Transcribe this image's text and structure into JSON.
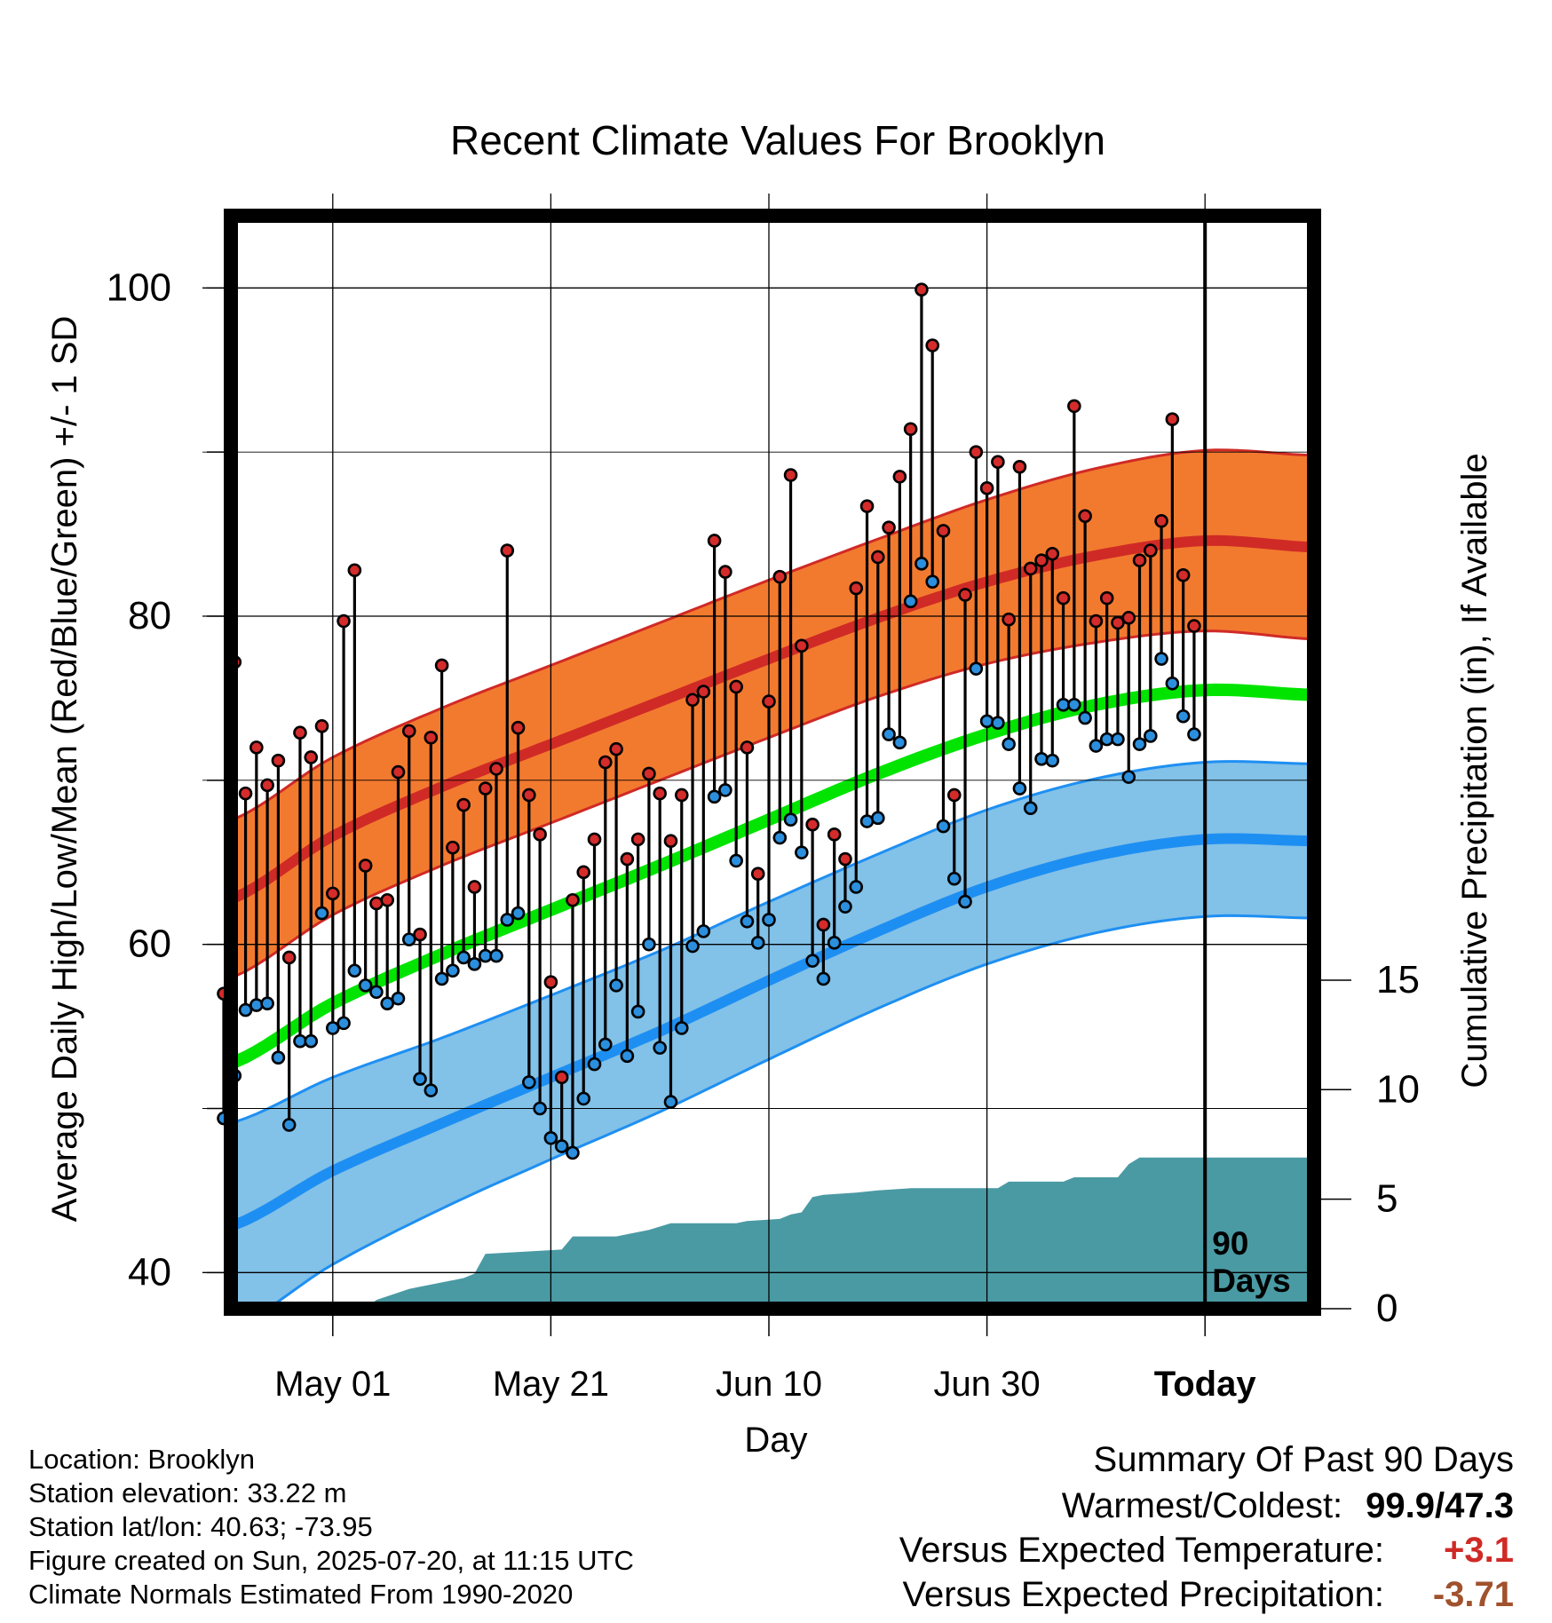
{
  "chart_data": {
    "type": "line",
    "title": "Recent Climate Values For Brooklyn",
    "xlabel": "Day",
    "ylabel": "Average Daily High/Low/Mean (Red/Blue/Green) +/- 1 SD",
    "y2label": "Cumulative Precipitation (in), If Available",
    "x_ticks": [
      {
        "day": 10,
        "label": "May 01"
      },
      {
        "day": 30,
        "label": "May 21"
      },
      {
        "day": 50,
        "label": "Jun 10"
      },
      {
        "day": 70,
        "label": "Jun 30"
      },
      {
        "day": 90,
        "label": "Today"
      }
    ],
    "y_ticks": [
      {
        "value": 40,
        "label": "40"
      },
      {
        "value": 60,
        "label": "60"
      },
      {
        "value": 80,
        "label": "80"
      },
      {
        "value": 100,
        "label": "100"
      }
    ],
    "y2_ticks": [
      {
        "value": 0,
        "label": "0"
      },
      {
        "value": 5,
        "label": "5"
      },
      {
        "value": 10,
        "label": "10"
      },
      {
        "value": 15,
        "label": "15"
      }
    ],
    "xlim": [
      0,
      100
    ],
    "ylim": [
      37.8,
      104.4
    ],
    "y2lim": [
      0,
      15
    ],
    "today_day": 90,
    "today_label": "90 Days",
    "grid": true,
    "colors": {
      "high": "#d02a26",
      "high_band": "#f27a2f",
      "low": "#1e8ff2",
      "low_band": "#82c1e8",
      "mean": "#00e400",
      "precip": "#4a9aa4",
      "high_dot": "#d42b2b",
      "low_dot": "#2b8fde"
    },
    "normal_high": {
      "x": [
        0,
        10,
        20,
        30,
        40,
        50,
        60,
        70,
        80,
        90,
        100
      ],
      "y": [
        62.6,
        66.6,
        69.6,
        72.2,
        74.8,
        77.4,
        79.9,
        82.1,
        83.7,
        84.6,
        84.2
      ]
    },
    "normal_high_sd": [
      4.8,
      4.8,
      4.8,
      4.8,
      4.8,
      4.8,
      4.8,
      5.0,
      5.3,
      5.5,
      5.6
    ],
    "normal_low": {
      "x": [
        0,
        10,
        20,
        30,
        40,
        50,
        60,
        70,
        80,
        90,
        100
      ],
      "y": [
        42.7,
        46.2,
        49.1,
        51.9,
        54.7,
        57.8,
        60.8,
        63.5,
        65.4,
        66.4,
        66.3
      ]
    },
    "normal_low_sd": [
      6.3,
      5.7,
      5.2,
      5.0,
      4.9,
      4.8,
      4.7,
      4.7,
      4.7,
      4.7,
      4.7
    ],
    "normal_mean": {
      "x": [
        0,
        10,
        20,
        30,
        40,
        50,
        60,
        70,
        80,
        90,
        100
      ],
      "y": [
        52.6,
        56.4,
        59.4,
        62.1,
        64.8,
        67.6,
        70.4,
        72.8,
        74.6,
        75.5,
        75.2
      ]
    },
    "daily": [
      {
        "day": 0,
        "high": 57.0,
        "low": 49.4
      },
      {
        "day": 1,
        "high": 77.2,
        "low": 52.0
      },
      {
        "day": 2,
        "high": 69.2,
        "low": 56.0
      },
      {
        "day": 3,
        "high": 72.0,
        "low": 56.3
      },
      {
        "day": 4,
        "high": 69.7,
        "low": 56.4
      },
      {
        "day": 5,
        "high": 71.2,
        "low": 53.1
      },
      {
        "day": 6,
        "high": 59.2,
        "low": 49.0
      },
      {
        "day": 7,
        "high": 72.9,
        "low": 54.1
      },
      {
        "day": 8,
        "high": 71.4,
        "low": 54.1
      },
      {
        "day": 9,
        "high": 73.3,
        "low": 61.9
      },
      {
        "day": 10,
        "high": 63.1,
        "low": 54.9
      },
      {
        "day": 11,
        "high": 79.7,
        "low": 55.2
      },
      {
        "day": 12,
        "high": 82.8,
        "low": 58.4
      },
      {
        "day": 13,
        "high": 64.8,
        "low": 57.5
      },
      {
        "day": 14,
        "high": 62.5,
        "low": 57.1
      },
      {
        "day": 15,
        "high": 62.7,
        "low": 56.4
      },
      {
        "day": 16,
        "high": 70.5,
        "low": 56.7
      },
      {
        "day": 17,
        "high": 73.0,
        "low": 60.3
      },
      {
        "day": 18,
        "high": 60.6,
        "low": 51.8
      },
      {
        "day": 19,
        "high": 72.6,
        "low": 51.1
      },
      {
        "day": 20,
        "high": 77.0,
        "low": 57.9
      },
      {
        "day": 21,
        "high": 65.9,
        "low": 58.4
      },
      {
        "day": 22,
        "high": 68.5,
        "low": 59.2
      },
      {
        "day": 23,
        "high": 63.5,
        "low": 58.8
      },
      {
        "day": 24,
        "high": 69.5,
        "low": 59.3
      },
      {
        "day": 25,
        "high": 70.7,
        "low": 59.3
      },
      {
        "day": 26,
        "high": 84.0,
        "low": 61.5
      },
      {
        "day": 27,
        "high": 73.2,
        "low": 61.9
      },
      {
        "day": 28,
        "high": 69.1,
        "low": 51.6
      },
      {
        "day": 29,
        "high": 66.7,
        "low": 50.0
      },
      {
        "day": 30,
        "high": 57.7,
        "low": 48.2
      },
      {
        "day": 31,
        "high": 51.9,
        "low": 47.7
      },
      {
        "day": 32,
        "high": 62.7,
        "low": 47.3
      },
      {
        "day": 33,
        "high": 64.4,
        "low": 50.6
      },
      {
        "day": 34,
        "high": 66.4,
        "low": 52.7
      },
      {
        "day": 35,
        "high": 71.1,
        "low": 53.9
      },
      {
        "day": 36,
        "high": 71.9,
        "low": 57.5
      },
      {
        "day": 37,
        "high": 65.2,
        "low": 53.2
      },
      {
        "day": 38,
        "high": 66.4,
        "low": 55.9
      },
      {
        "day": 39,
        "high": 70.4,
        "low": 60.0
      },
      {
        "day": 40,
        "high": 69.2,
        "low": 53.7
      },
      {
        "day": 41,
        "high": 66.3,
        "low": 50.4
      },
      {
        "day": 42,
        "high": 69.1,
        "low": 54.9
      },
      {
        "day": 43,
        "high": 74.9,
        "low": 59.9
      },
      {
        "day": 44,
        "high": 75.4,
        "low": 60.8
      },
      {
        "day": 45,
        "high": 84.6,
        "low": 69.0
      },
      {
        "day": 46,
        "high": 82.7,
        "low": 69.4
      },
      {
        "day": 47,
        "high": 75.7,
        "low": 65.1
      },
      {
        "day": 48,
        "high": 72.0,
        "low": 61.4
      },
      {
        "day": 49,
        "high": 64.3,
        "low": 60.1
      },
      {
        "day": 50,
        "high": 74.8,
        "low": 61.5
      },
      {
        "day": 51,
        "high": 82.4,
        "low": 66.5
      },
      {
        "day": 52,
        "high": 88.6,
        "low": 67.6
      },
      {
        "day": 53,
        "high": 78.2,
        "low": 65.6
      },
      {
        "day": 54,
        "high": 67.3,
        "low": 59.0
      },
      {
        "day": 55,
        "high": 61.2,
        "low": 57.9
      },
      {
        "day": 56,
        "high": 66.7,
        "low": 60.1
      },
      {
        "day": 57,
        "high": 65.2,
        "low": 62.3
      },
      {
        "day": 58,
        "high": 81.7,
        "low": 63.5
      },
      {
        "day": 59,
        "high": 86.7,
        "low": 67.5
      },
      {
        "day": 60,
        "high": 83.6,
        "low": 67.7
      },
      {
        "day": 61,
        "high": 85.4,
        "low": 72.8
      },
      {
        "day": 62,
        "high": 88.5,
        "low": 72.3
      },
      {
        "day": 63,
        "high": 91.4,
        "low": 80.9
      },
      {
        "day": 64,
        "high": 99.9,
        "low": 83.2
      },
      {
        "day": 65,
        "high": 96.5,
        "low": 82.1
      },
      {
        "day": 66,
        "high": 85.2,
        "low": 67.2
      },
      {
        "day": 67,
        "high": 69.1,
        "low": 64.0
      },
      {
        "day": 68,
        "high": 81.3,
        "low": 62.6
      },
      {
        "day": 69,
        "high": 90.0,
        "low": 76.8
      },
      {
        "day": 70,
        "high": 87.8,
        "low": 73.6
      },
      {
        "day": 71,
        "high": 89.4,
        "low": 73.5
      },
      {
        "day": 72,
        "high": 79.8,
        "low": 72.2
      },
      {
        "day": 73,
        "high": 89.1,
        "low": 69.5
      },
      {
        "day": 74,
        "high": 82.9,
        "low": 68.3
      },
      {
        "day": 75,
        "high": 83.4,
        "low": 71.3
      },
      {
        "day": 76,
        "high": 83.8,
        "low": 71.2
      },
      {
        "day": 77,
        "high": 81.1,
        "low": 74.6
      },
      {
        "day": 78,
        "high": 92.8,
        "low": 74.6
      },
      {
        "day": 79,
        "high": 86.1,
        "low": 73.8
      },
      {
        "day": 80,
        "high": 79.7,
        "low": 72.1
      },
      {
        "day": 81,
        "high": 81.1,
        "low": 72.5
      },
      {
        "day": 82,
        "high": 79.6,
        "low": 72.5
      },
      {
        "day": 83,
        "high": 79.9,
        "low": 70.2
      },
      {
        "day": 84,
        "high": 83.4,
        "low": 72.2
      },
      {
        "day": 85,
        "high": 84.0,
        "low": 72.7
      },
      {
        "day": 86,
        "high": 85.8,
        "low": 77.4
      },
      {
        "day": 87,
        "high": 92.0,
        "low": 75.9
      },
      {
        "day": 88,
        "high": 82.5,
        "low": 73.9
      },
      {
        "day": 89,
        "high": 79.4,
        "low": 72.8
      }
    ],
    "precip": {
      "x": [
        0,
        13,
        14,
        17,
        18,
        22,
        23,
        24,
        31,
        32,
        36,
        37,
        39,
        41,
        47,
        48,
        51,
        52,
        53,
        54,
        55,
        58,
        60,
        63,
        71,
        72,
        77,
        78,
        82,
        83,
        84,
        100
      ],
      "y": [
        0,
        0,
        0.4,
        0.9,
        1.0,
        1.4,
        1.6,
        2.5,
        2.7,
        3.3,
        3.3,
        3.4,
        3.6,
        3.9,
        3.9,
        4.0,
        4.1,
        4.3,
        4.4,
        5.1,
        5.2,
        5.3,
        5.4,
        5.5,
        5.5,
        5.8,
        5.8,
        6.0,
        6.0,
        6.6,
        6.9,
        6.9
      ]
    }
  },
  "info": {
    "location": "Location: Brooklyn",
    "elevation": "Station elevation: 33.22 m",
    "latlon": "Station lat/lon: 40.63; -73.95",
    "created": "Figure created on Sun, 2025-07-20, at 11:15 UTC",
    "normals": "Climate Normals Estimated From 1990-2020"
  },
  "summary": {
    "title": "Summary Of Past 90 Days",
    "warmest_label": "Warmest/Coldest:",
    "warmest_value": "99.9/47.3",
    "temp_label": "Versus Expected Temperature:",
    "temp_value": "+3.1",
    "temp_color": "#d02a26",
    "precip_label": "Versus Expected Precipitation:",
    "precip_value": "-3.71",
    "precip_color": "#a0522d"
  }
}
